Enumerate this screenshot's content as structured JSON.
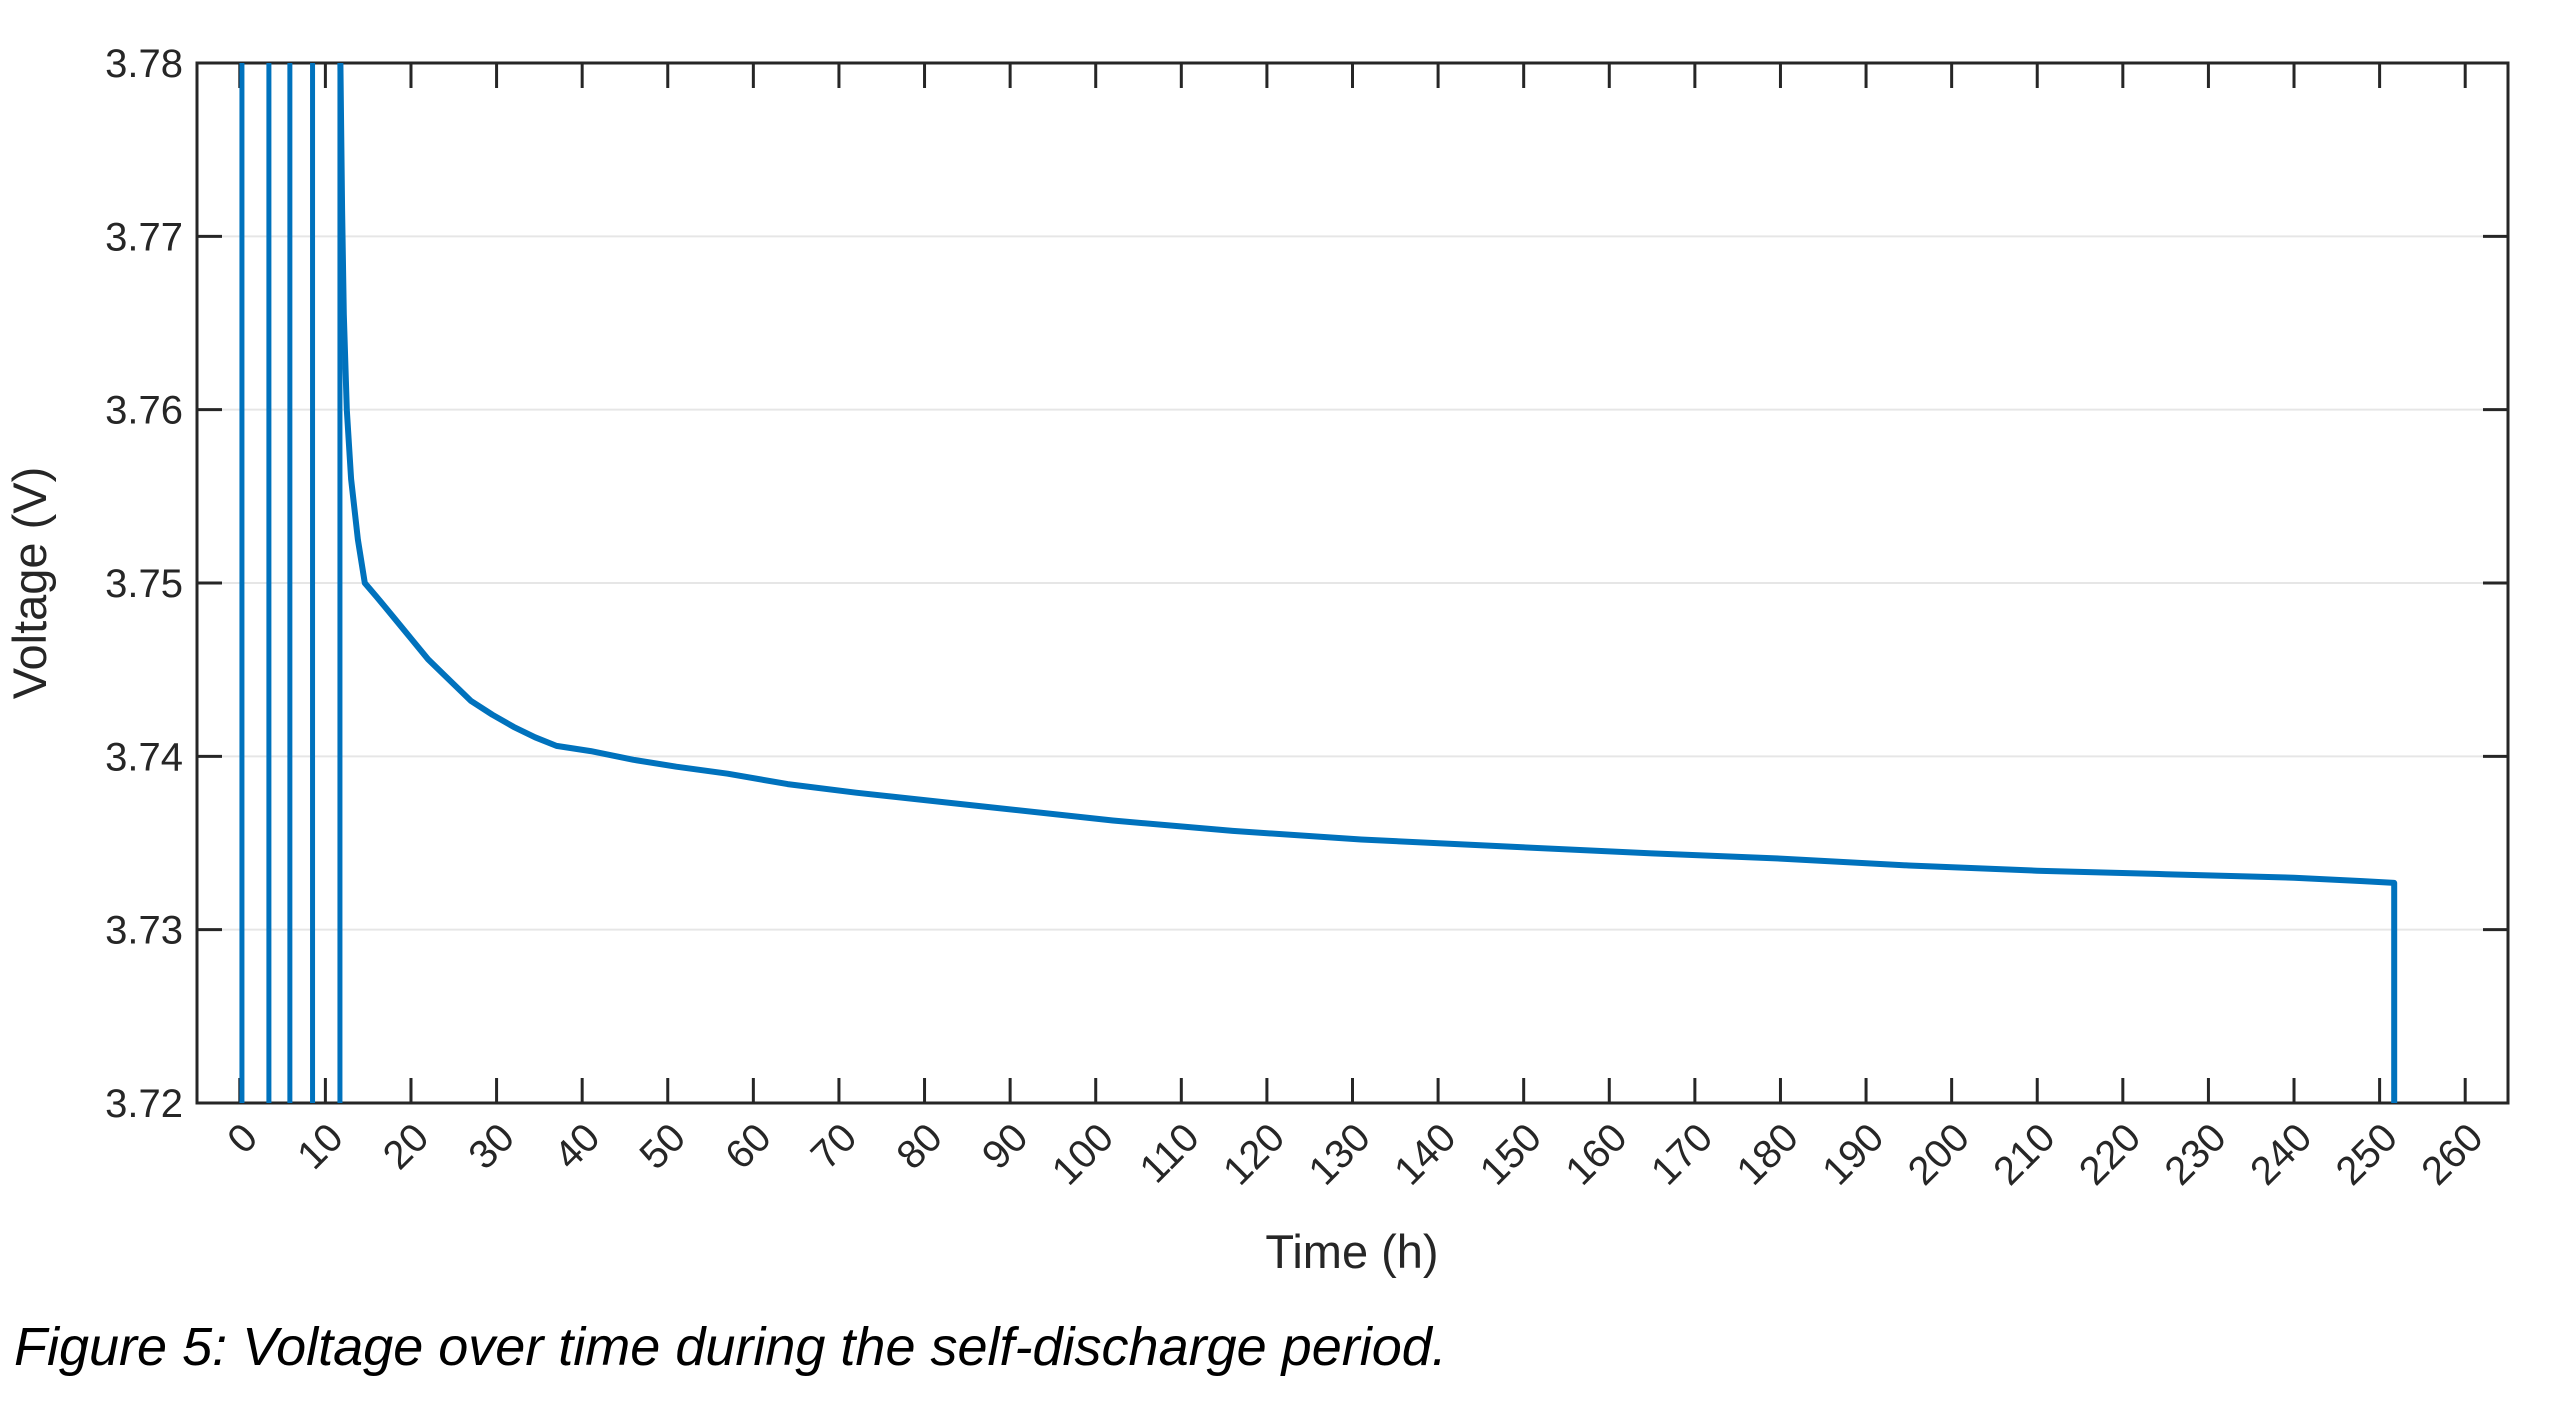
{
  "figure": {
    "caption": "Figure 5: Voltage over time during the self-discharge period."
  },
  "chart_data": {
    "type": "line",
    "title": "",
    "xlabel": "Time (h)",
    "ylabel": "Voltage (V)",
    "xlim": [
      -5,
      265
    ],
    "ylim": [
      3.72,
      3.78
    ],
    "xticks": [
      0,
      10,
      20,
      30,
      40,
      50,
      60,
      70,
      80,
      90,
      100,
      110,
      120,
      130,
      140,
      150,
      160,
      170,
      180,
      190,
      200,
      210,
      220,
      230,
      240,
      250,
      260
    ],
    "xtick_labels": [
      "0",
      "10",
      "20",
      "30",
      "40",
      "50",
      "60",
      "70",
      "80",
      "90",
      "100",
      "110",
      "120",
      "130",
      "140",
      "150",
      "160",
      "170",
      "180",
      "190",
      "200",
      "210",
      "220",
      "230",
      "240",
      "250",
      "260"
    ],
    "x_tick_rotation_deg": 45,
    "yticks": [
      3.72,
      3.73,
      3.74,
      3.75,
      3.76,
      3.77,
      3.78
    ],
    "ytick_labels": [
      "3.72",
      "3.73",
      "3.74",
      "3.75",
      "3.76",
      "3.77",
      "3.78"
    ],
    "grid": "horizontal-only",
    "legend": "none",
    "line_color": "#0072BD",
    "axis_color": "#262626",
    "grid_color": "#E6E6E6",
    "background_color": "#FFFFFF",
    "series": [
      {
        "name": "cycling-spikes",
        "type": "vlines",
        "x": [
          0.25,
          3.4,
          5.85,
          8.5,
          11.7
        ],
        "y_from": 3.72,
        "y_to": 3.78
      },
      {
        "name": "self-discharge-decay",
        "type": "path",
        "points": [
          [
            11.75,
            3.78
          ],
          [
            11.95,
            3.7715
          ],
          [
            12.15,
            3.7655
          ],
          [
            12.5,
            3.76
          ],
          [
            13.0,
            3.756
          ],
          [
            13.8,
            3.7525
          ],
          [
            14.6,
            3.75
          ],
          [
            16,
            3.7492
          ],
          [
            18,
            3.748
          ],
          [
            20,
            3.7468
          ],
          [
            22,
            3.7456
          ],
          [
            24.5,
            3.7444
          ],
          [
            27,
            3.7432
          ],
          [
            29.5,
            3.7424
          ],
          [
            32,
            3.7417
          ],
          [
            34.5,
            3.7411
          ],
          [
            37,
            3.7406
          ],
          [
            41,
            3.7403
          ],
          [
            46,
            3.7398
          ],
          [
            51,
            3.7394
          ],
          [
            57,
            3.739
          ],
          [
            64,
            3.7384
          ],
          [
            72,
            3.7379
          ],
          [
            87,
            3.7371
          ],
          [
            102,
            3.7363
          ],
          [
            116,
            3.7357
          ],
          [
            131,
            3.7352
          ],
          [
            148,
            3.7348
          ],
          [
            165,
            3.7344
          ],
          [
            180,
            3.7341
          ],
          [
            195,
            3.7337
          ],
          [
            210,
            3.7334
          ],
          [
            225,
            3.7332
          ],
          [
            240,
            3.733
          ],
          [
            248,
            3.7328
          ],
          [
            251.7,
            3.7327
          ],
          [
            251.7,
            3.72
          ]
        ]
      }
    ]
  }
}
